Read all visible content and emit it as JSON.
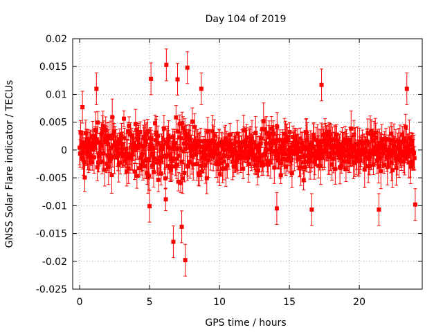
{
  "chart_data": {
    "type": "scatter",
    "title": "Day 104 of 2019",
    "xlabel": "GPS time / hours",
    "ylabel": "GNSS Solar Flare indicator / TECUs",
    "xlim": [
      -0.5,
      24.5
    ],
    "ylim": [
      -0.025,
      0.02
    ],
    "grid": true,
    "x_ticks": [
      0,
      5,
      10,
      15,
      20
    ],
    "x_tick_labels": [
      "0",
      "5",
      "10",
      "15",
      "20"
    ],
    "y_ticks": [
      -0.025,
      -0.02,
      -0.015,
      -0.01,
      -0.005,
      0,
      0.005,
      0.01,
      0.015,
      0.02
    ],
    "y_tick_labels": [
      "-0.025",
      "-0.02",
      "-0.015",
      "-0.01",
      "-0.005",
      "0",
      "0.005",
      "0.01",
      "0.015",
      "0.02"
    ],
    "marker_color": "#ff0000",
    "series": [
      {
        "name": "Solar flare indicator",
        "x_start": 0.0,
        "x_step": 0.0333,
        "count": 720,
        "band_envelope": {
          "hours": [
            0,
            2,
            4,
            5,
            6,
            7,
            7.5,
            8,
            9,
            10,
            12,
            14,
            16,
            18,
            20,
            21,
            22,
            23,
            24
          ],
          "typical_amplitude": [
            0.0065,
            0.006,
            0.0062,
            0.0075,
            0.0085,
            0.0095,
            0.0098,
            0.008,
            0.0065,
            0.0055,
            0.0055,
            0.0058,
            0.0055,
            0.0052,
            0.005,
            0.0058,
            0.0062,
            0.0065,
            0.0062
          ]
        },
        "notable_points": [
          {
            "x": 0.2,
            "y": 0.0077
          },
          {
            "x": 1.2,
            "y": 0.011
          },
          {
            "x": 5.1,
            "y": 0.0128
          },
          {
            "x": 5.0,
            "y": -0.0101
          },
          {
            "x": 6.2,
            "y": 0.0153
          },
          {
            "x": 6.7,
            "y": -0.0165
          },
          {
            "x": 7.0,
            "y": 0.0127
          },
          {
            "x": 7.3,
            "y": -0.0138
          },
          {
            "x": 7.55,
            "y": -0.0198
          },
          {
            "x": 7.7,
            "y": 0.0148
          },
          {
            "x": 8.7,
            "y": 0.011
          },
          {
            "x": 14.1,
            "y": -0.0105
          },
          {
            "x": 16.6,
            "y": -0.0107
          },
          {
            "x": 17.3,
            "y": 0.0117
          },
          {
            "x": 21.4,
            "y": -0.0107
          },
          {
            "x": 23.4,
            "y": 0.011
          },
          {
            "x": 24.0,
            "y": -0.0098
          }
        ],
        "error_bar_typical": 0.0022
      }
    ]
  }
}
